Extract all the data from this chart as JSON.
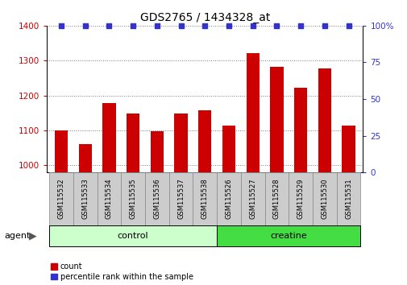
{
  "title": "GDS2765 / 1434328_at",
  "categories": [
    "GSM115532",
    "GSM115533",
    "GSM115534",
    "GSM115535",
    "GSM115536",
    "GSM115537",
    "GSM115538",
    "GSM115526",
    "GSM115527",
    "GSM115528",
    "GSM115529",
    "GSM115530",
    "GSM115531"
  ],
  "bar_values": [
    1100,
    1060,
    1178,
    1148,
    1098,
    1148,
    1158,
    1115,
    1322,
    1283,
    1222,
    1278,
    1115
  ],
  "percentile_values": [
    100,
    100,
    100,
    100,
    100,
    100,
    100,
    100,
    100,
    100,
    100,
    100,
    100
  ],
  "bar_color": "#cc0000",
  "percentile_color": "#3333cc",
  "ylim_left": [
    980,
    1400
  ],
  "ylim_right": [
    0,
    100
  ],
  "yticks_left": [
    1000,
    1100,
    1200,
    1300,
    1400
  ],
  "yticks_right": [
    0,
    25,
    50,
    75,
    100
  ],
  "ytick_right_labels": [
    "0",
    "25",
    "50",
    "75",
    "100%"
  ],
  "groups": [
    {
      "label": "control",
      "start": 0,
      "end": 7,
      "color": "#ccffcc"
    },
    {
      "label": "creatine",
      "start": 7,
      "end": 13,
      "color": "#44dd44"
    }
  ],
  "agent_label": "agent",
  "legend_count_label": "count",
  "legend_percentile_label": "percentile rank within the sample",
  "bar_width": 0.55,
  "grid_color": "#777777",
  "bg_color": "#ffffff",
  "label_box_color": "#cccccc",
  "label_box_edge": "#888888"
}
